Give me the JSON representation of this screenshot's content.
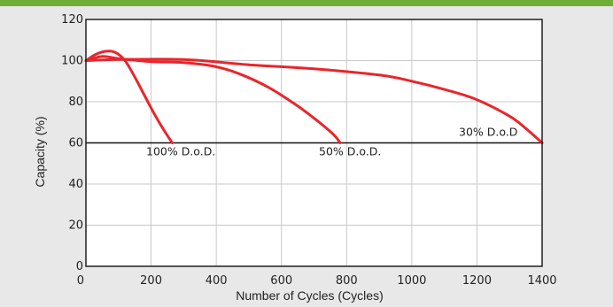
{
  "colors": {
    "accent_bar": "#6fae34",
    "page_background": "#e8e8e8",
    "plot_background": "#ffffff",
    "grid": "#c8c8c8",
    "series": "#e8262c",
    "axis": "#111111"
  },
  "chart_data": {
    "type": "line",
    "title": "",
    "xlabel": "Number of Cycles (Cycles)",
    "ylabel": "Capacity (%)",
    "xlim": [
      0,
      1400
    ],
    "ylim": [
      0,
      120
    ],
    "x_ticks": [
      0,
      200,
      400,
      600,
      800,
      1000,
      1200,
      1400
    ],
    "y_ticks": [
      0,
      20,
      40,
      60,
      80,
      100,
      120
    ],
    "grid": true,
    "reference_line_y": 60,
    "series": [
      {
        "name": "100% D.o.D.",
        "x": [
          0,
          30,
          60,
          90,
          120,
          150,
          180,
          210,
          240,
          265
        ],
        "y": [
          100,
          103,
          104.5,
          104,
          100,
          92,
          83,
          74,
          66,
          60
        ]
      },
      {
        "name": "50% D.o.D.",
        "x": [
          0,
          50,
          100,
          200,
          300,
          400,
          480,
          560,
          640,
          700,
          760,
          780
        ],
        "y": [
          100,
          102,
          101,
          99.5,
          99,
          97,
          93,
          87,
          79,
          72,
          64,
          60
        ]
      },
      {
        "name": "30% D.o.D",
        "x": [
          0,
          100,
          300,
          500,
          700,
          900,
          1000,
          1100,
          1200,
          1300,
          1350,
          1400
        ],
        "y": [
          100,
          100.5,
          100.5,
          98,
          96,
          93,
          90,
          86,
          81,
          73,
          67,
          60
        ]
      }
    ]
  }
}
